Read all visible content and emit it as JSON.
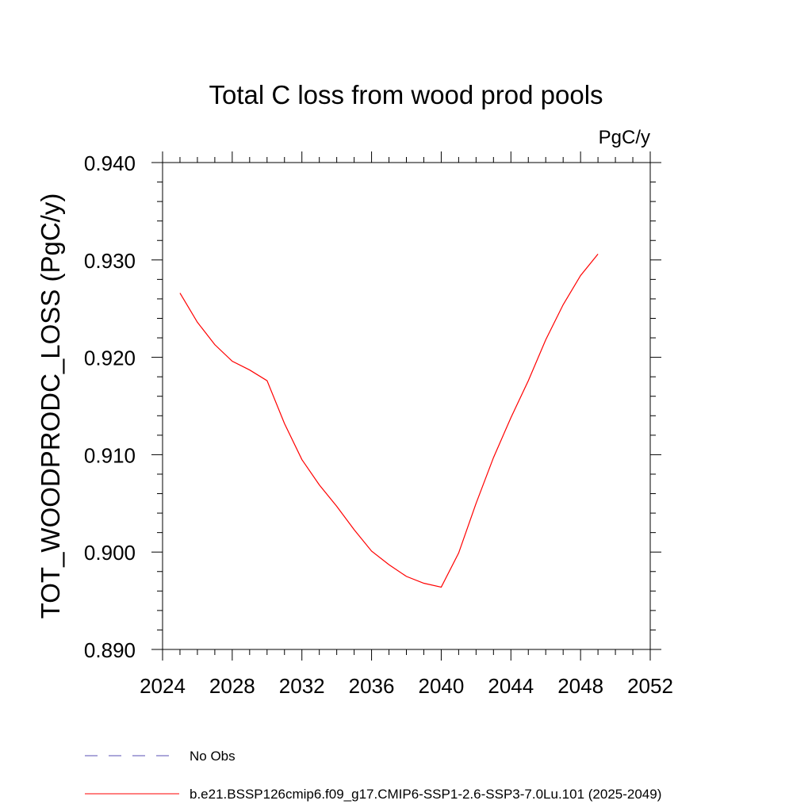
{
  "chart_data": {
    "type": "line",
    "title": "Total C loss from wood prod pools",
    "units": "PgC/y",
    "ylabel": "TOT_WOODPRODC_LOSS  (PgC/y)",
    "xlabel": "",
    "xlim": [
      2024,
      2052
    ],
    "ylim": [
      0.89,
      0.94
    ],
    "x_ticks": [
      "2024",
      "2028",
      "2032",
      "2036",
      "2040",
      "2044",
      "2048",
      "2052"
    ],
    "y_ticks": [
      "0.890",
      "0.900",
      "0.910",
      "0.920",
      "0.930",
      "0.940"
    ],
    "grid": false,
    "legend_position": "bottom",
    "series": [
      {
        "name": "No Obs",
        "color": "#5a4fb5",
        "dash": "dashed",
        "x": [],
        "y": []
      },
      {
        "name": "b.e21.BSSP126cmip6.f09_g17.CMIP6-SSP1-2.6-SSP3-7.0Lu.101 (2025-2049)",
        "color": "#ff0000",
        "dash": "solid",
        "x": [
          2025,
          2026,
          2027,
          2028,
          2029,
          2030,
          2031,
          2032,
          2033,
          2034,
          2035,
          2036,
          2037,
          2038,
          2039,
          2040,
          2041,
          2042,
          2043,
          2044,
          2045,
          2046,
          2047,
          2048,
          2049
        ],
        "y": [
          0.9266,
          0.9236,
          0.9213,
          0.9196,
          0.9187,
          0.9176,
          0.9132,
          0.9095,
          0.9069,
          0.9047,
          0.9023,
          0.9001,
          0.8987,
          0.8975,
          0.8968,
          0.8964,
          0.8999,
          0.905,
          0.9097,
          0.9138,
          0.9176,
          0.9218,
          0.9254,
          0.9284,
          0.9306
        ]
      }
    ]
  }
}
